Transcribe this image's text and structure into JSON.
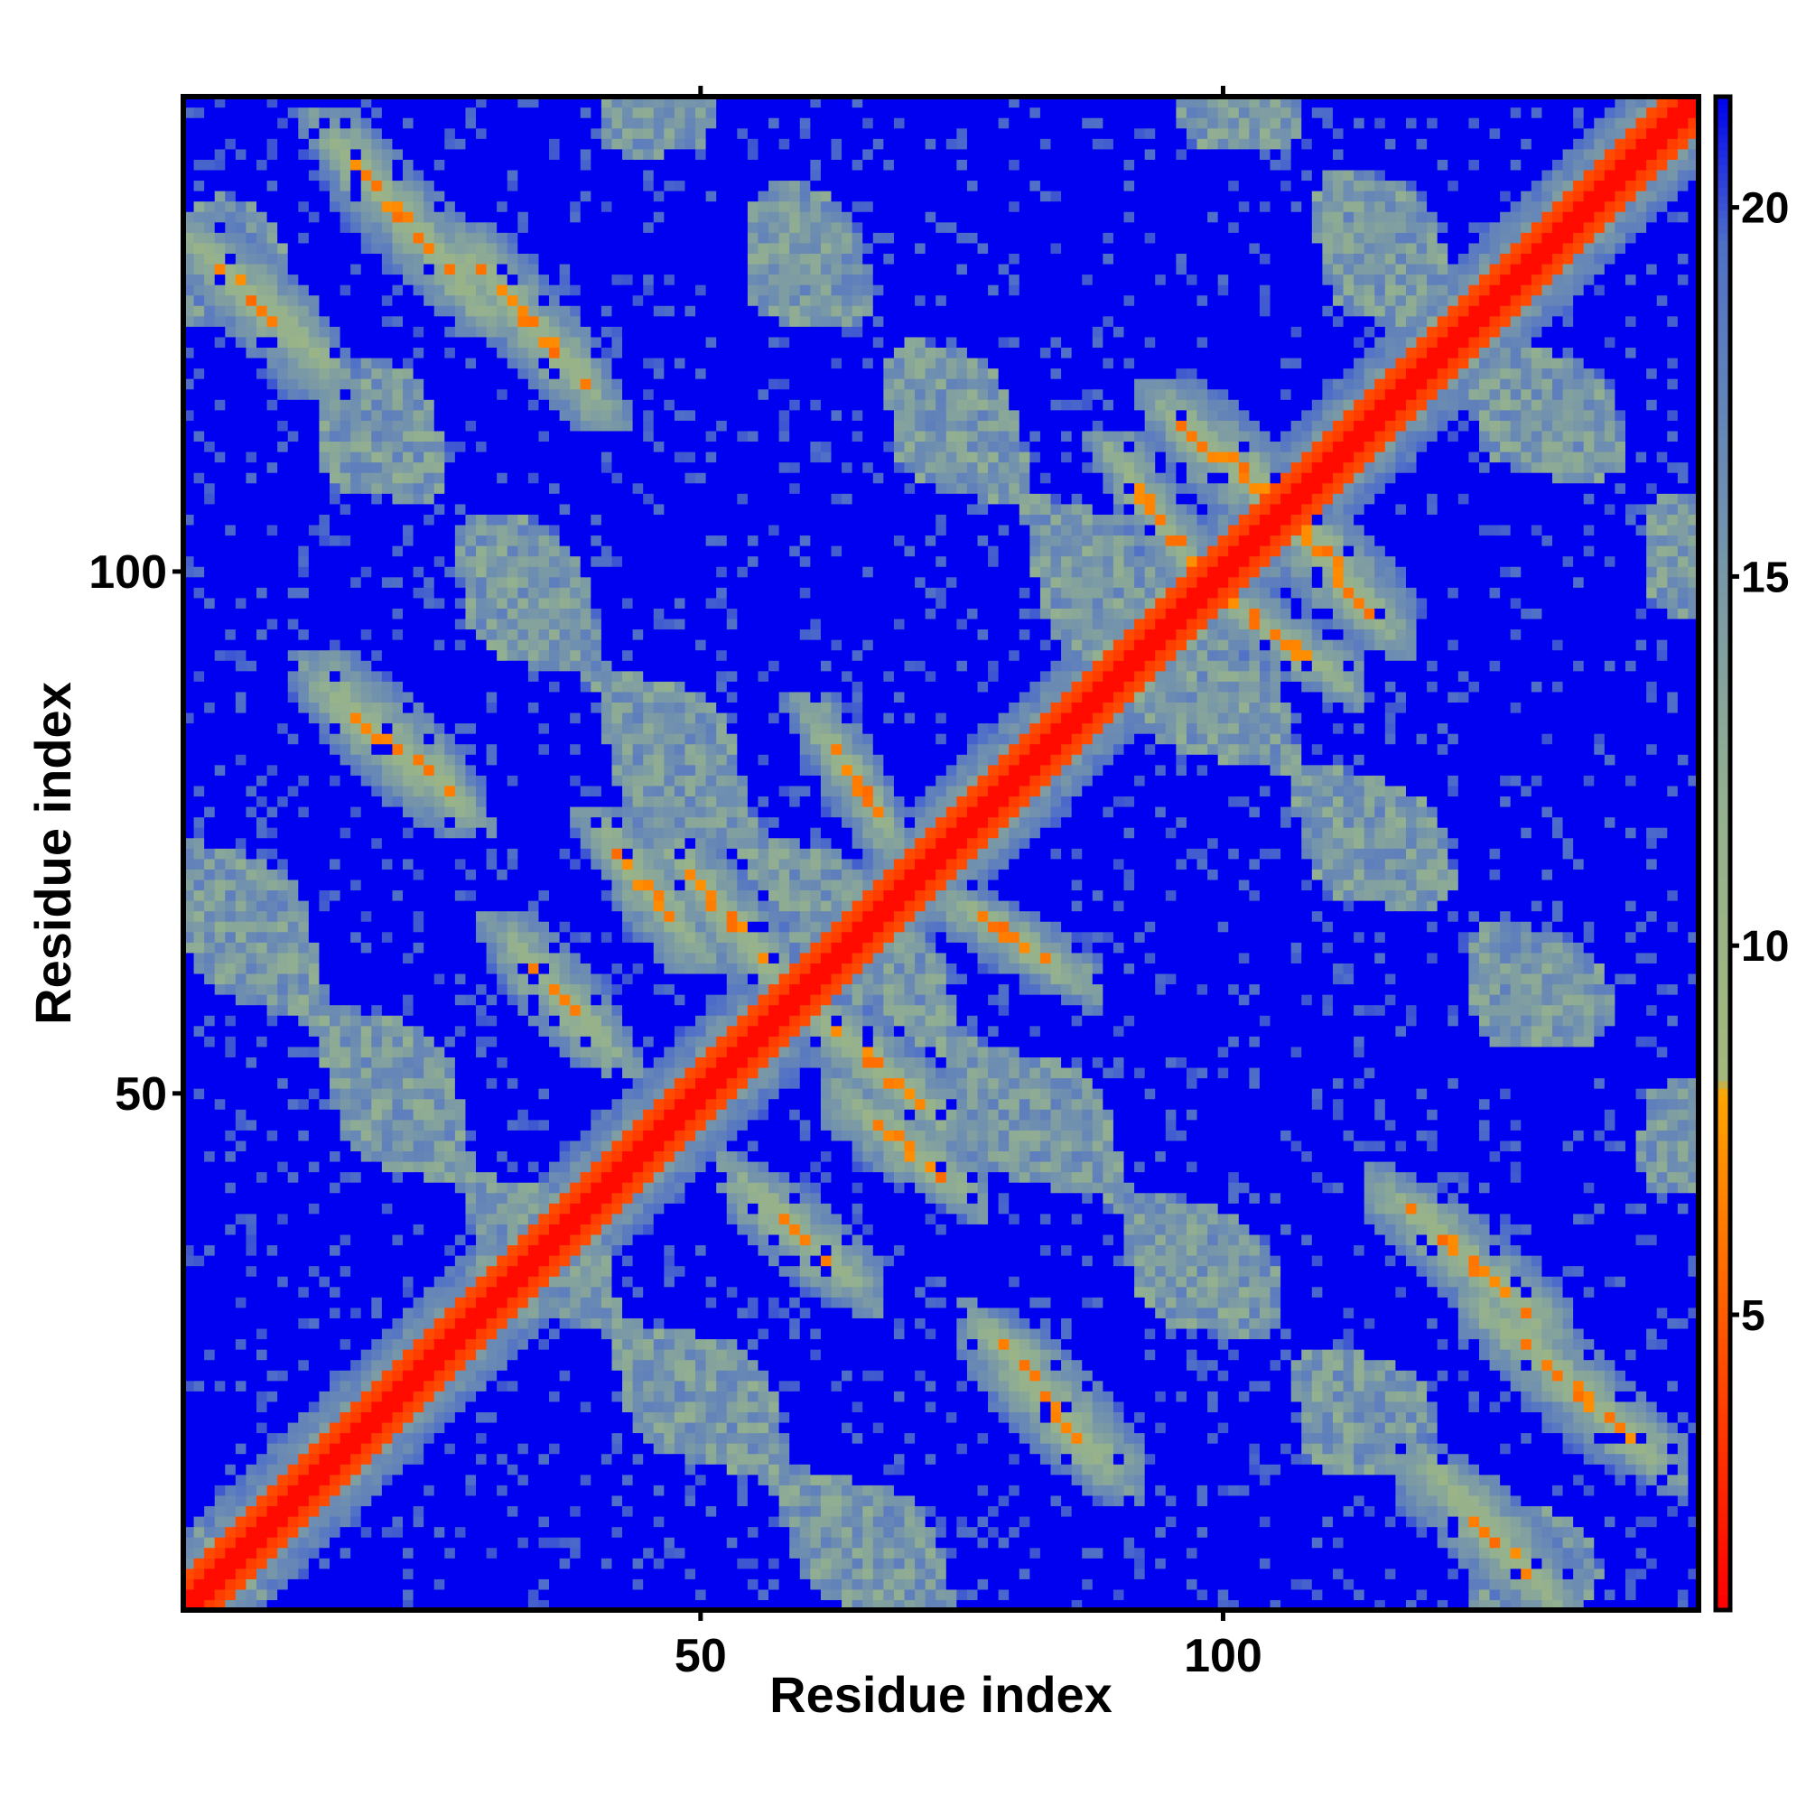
{
  "chart_data": {
    "type": "heatmap",
    "title": "",
    "xlabel": "Residue index",
    "ylabel": "Residue index",
    "n_residues": 145,
    "xlim": [
      1,
      145
    ],
    "ylim": [
      1,
      145
    ],
    "x_ticks": [
      {
        "value": 50,
        "label": "50"
      },
      {
        "value": 100,
        "label": "100"
      }
    ],
    "y_ticks": [
      {
        "value": 50,
        "label": "50"
      },
      {
        "value": 100,
        "label": "100"
      }
    ],
    "colorbar": {
      "min": 1,
      "max": 21.5,
      "ticks": [
        {
          "value": 5,
          "label": "5"
        },
        {
          "value": 10,
          "label": "10"
        },
        {
          "value": 15,
          "label": "15"
        },
        {
          "value": 20,
          "label": "20"
        }
      ],
      "stops": [
        {
          "value": 1,
          "color": "#ff0000"
        },
        {
          "value": 4,
          "color": "#ff4400"
        },
        {
          "value": 7,
          "color": "#ff8c00"
        },
        {
          "value": 8,
          "color": "#ffa500"
        },
        {
          "value": 8.2,
          "color": "#a3b87c"
        },
        {
          "value": 12,
          "color": "#93b090"
        },
        {
          "value": 16,
          "color": "#6f8fb0"
        },
        {
          "value": 19.5,
          "color": "#5070c8"
        },
        {
          "value": 21.5,
          "color": "#0000f0"
        }
      ]
    },
    "grid": false,
    "structure": {
      "diagonal": {
        "value": 1.5
      },
      "contact_bands": [
        {
          "a": [
            33,
            40
          ],
          "b": [
            56,
            63
          ],
          "dir": "antiparallel",
          "value": 6.5
        },
        {
          "a": [
            42,
            48
          ],
          "b": [
            66,
            73
          ],
          "dir": "antiparallel",
          "value": 6.5
        },
        {
          "a": [
            49,
            57
          ],
          "b": [
            62,
            71
          ],
          "dir": "antiparallel",
          "value": 6.0
        },
        {
          "a": [
            62,
            67
          ],
          "b": [
            77,
            84
          ],
          "dir": "antiparallel",
          "value": 6.5
        },
        {
          "a": [
            91,
            97
          ],
          "b": [
            101,
            109
          ],
          "dir": "antiparallel",
          "value": 6.0
        },
        {
          "a": [
            96,
            104
          ],
          "b": [
            108,
            114
          ],
          "dir": "antiparallel",
          "value": 6.5
        },
        {
          "a": [
            15,
            26
          ],
          "b": [
            79,
            88
          ],
          "dir": "antiparallel",
          "value": 6.5
        },
        {
          "a": [
            16,
            28
          ],
          "b": [
            127,
            140
          ],
          "dir": "antiparallel",
          "value": 6.5
        },
        {
          "a": [
            3,
            13
          ],
          "b": [
            121,
            130
          ],
          "dir": "antiparallel",
          "value": 6.5
        },
        {
          "a": [
            29,
            39
          ],
          "b": [
            118,
            129
          ],
          "dir": "antiparallel",
          "value": 6.5
        }
      ]
    }
  }
}
